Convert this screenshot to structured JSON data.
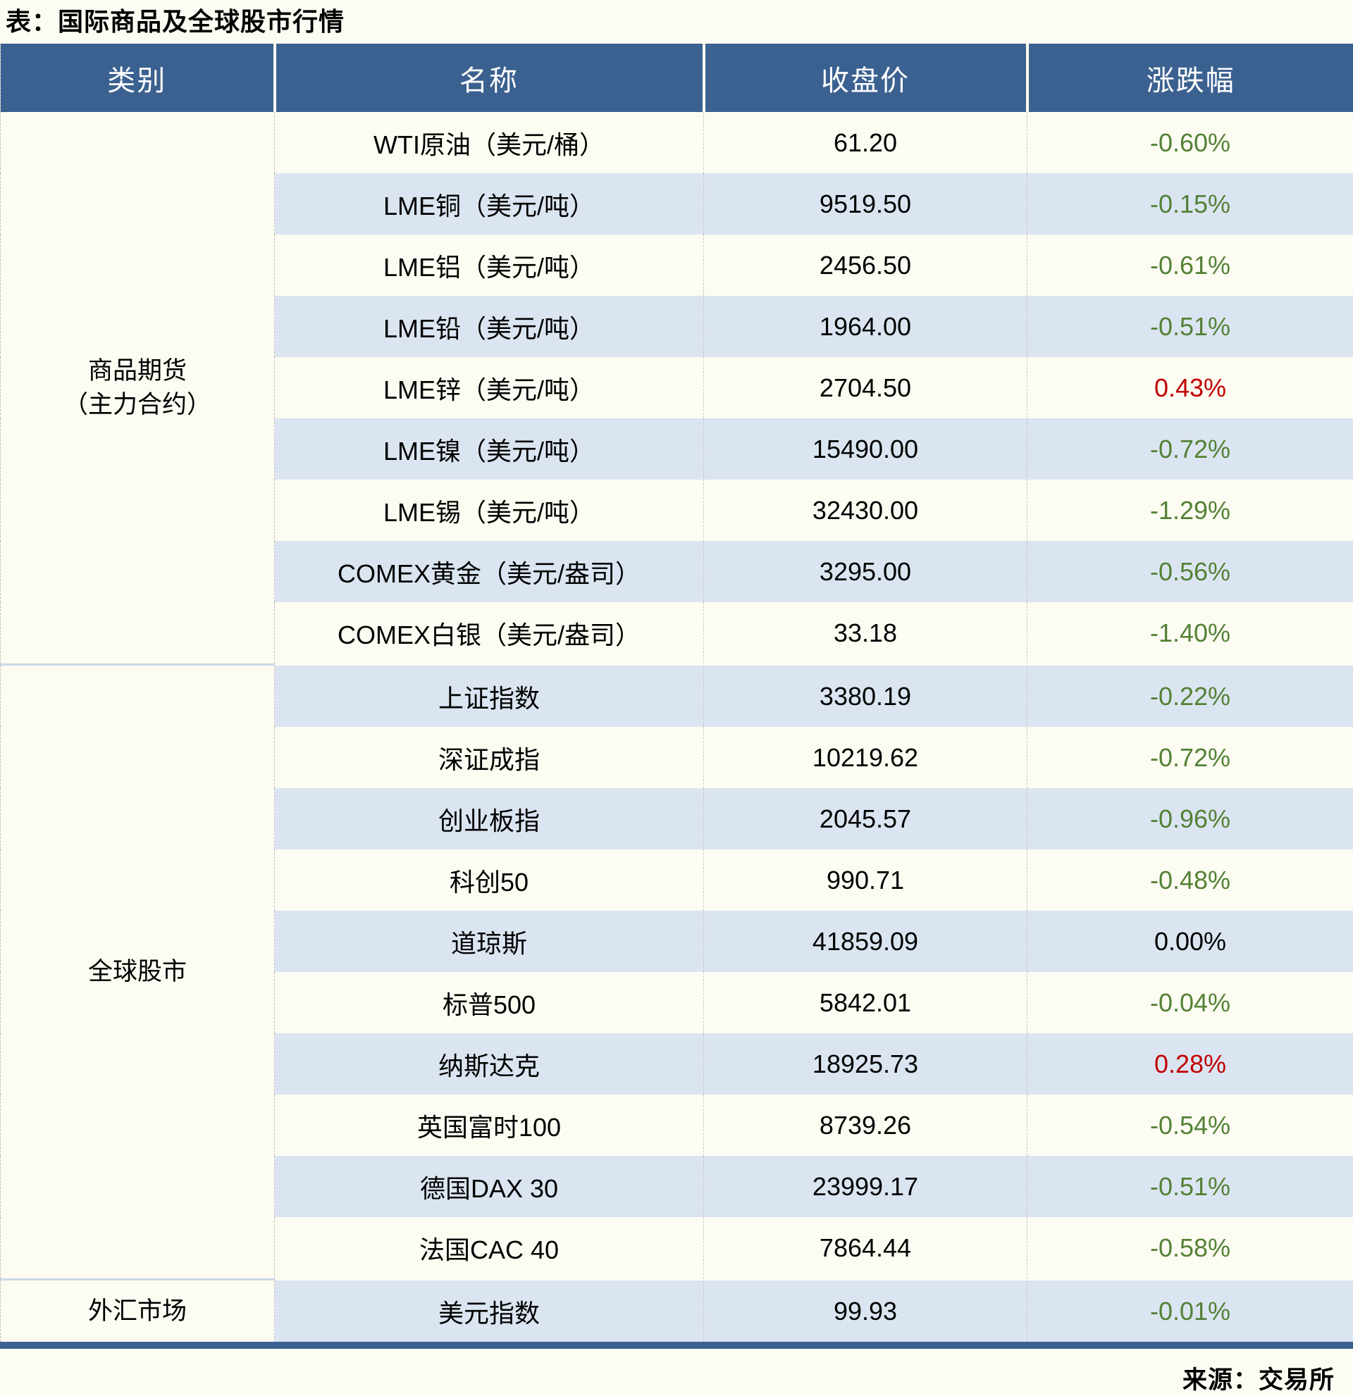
{
  "title": "表：国际商品及全球股市行情",
  "source": "来源：交易所",
  "colors": {
    "header_bg": "#3b6190",
    "stripe_bg": "#dbe5f1",
    "gain_red": "#c00000",
    "decline_green": "#538135",
    "flat_black": "#000000",
    "page_bg": "#fdfcf2",
    "section_divider": "#c9d7e9"
  },
  "table": {
    "headers": [
      "类别",
      "名称",
      "收盘价",
      "涨跌幅"
    ],
    "sections": [
      {
        "category_lines": [
          "商品期货",
          "（主力合约）"
        ],
        "rows": [
          {
            "name": "WTI原油（美元/桶）",
            "close": "61.20",
            "change": "-0.60%",
            "dir": "down"
          },
          {
            "name": "LME铜（美元/吨）",
            "close": "9519.50",
            "change": "-0.15%",
            "dir": "down"
          },
          {
            "name": "LME铝（美元/吨）",
            "close": "2456.50",
            "change": "-0.61%",
            "dir": "down"
          },
          {
            "name": "LME铅（美元/吨）",
            "close": "1964.00",
            "change": "-0.51%",
            "dir": "down"
          },
          {
            "name": "LME锌（美元/吨）",
            "close": "2704.50",
            "change": "0.43%",
            "dir": "up"
          },
          {
            "name": "LME镍（美元/吨）",
            "close": "15490.00",
            "change": "-0.72%",
            "dir": "down"
          },
          {
            "name": "LME锡（美元/吨）",
            "close": "32430.00",
            "change": "-1.29%",
            "dir": "down"
          },
          {
            "name": "COMEX黄金（美元/盎司）",
            "close": "3295.00",
            "change": "-0.56%",
            "dir": "down"
          },
          {
            "name": "COMEX白银（美元/盎司）",
            "close": "33.18",
            "change": "-1.40%",
            "dir": "down"
          }
        ]
      },
      {
        "category_lines": [
          "全球股市"
        ],
        "rows": [
          {
            "name": "上证指数",
            "close": "3380.19",
            "change": "-0.22%",
            "dir": "down"
          },
          {
            "name": "深证成指",
            "close": "10219.62",
            "change": "-0.72%",
            "dir": "down"
          },
          {
            "name": "创业板指",
            "close": "2045.57",
            "change": "-0.96%",
            "dir": "down"
          },
          {
            "name": "科创50",
            "close": "990.71",
            "change": "-0.48%",
            "dir": "down"
          },
          {
            "name": "道琼斯",
            "close": "41859.09",
            "change": "0.00%",
            "dir": "flat"
          },
          {
            "name": "标普500",
            "close": "5842.01",
            "change": "-0.04%",
            "dir": "down"
          },
          {
            "name": "纳斯达克",
            "close": "18925.73",
            "change": "0.28%",
            "dir": "up"
          },
          {
            "name": "英国富时100",
            "close": "8739.26",
            "change": "-0.54%",
            "dir": "down"
          },
          {
            "name": "德国DAX 30",
            "close": "23999.17",
            "change": "-0.51%",
            "dir": "down"
          },
          {
            "name": "法国CAC 40",
            "close": "7864.44",
            "change": "-0.58%",
            "dir": "down"
          }
        ]
      },
      {
        "category_lines": [
          "外汇市场"
        ],
        "rows": [
          {
            "name": "美元指数",
            "close": "99.93",
            "change": "-0.01%",
            "dir": "down"
          }
        ]
      }
    ]
  },
  "chart_data": {
    "type": "table",
    "title": "表：国际商品及全球股市行情",
    "columns": [
      "类别",
      "名称",
      "收盘价",
      "涨跌幅"
    ],
    "rows": [
      [
        "商品期货（主力合约）",
        "WTI原油（美元/桶）",
        61.2,
        "-0.60%"
      ],
      [
        "商品期货（主力合约）",
        "LME铜（美元/吨）",
        9519.5,
        "-0.15%"
      ],
      [
        "商品期货（主力合约）",
        "LME铝（美元/吨）",
        2456.5,
        "-0.61%"
      ],
      [
        "商品期货（主力合约）",
        "LME铅（美元/吨）",
        1964.0,
        "-0.51%"
      ],
      [
        "商品期货（主力合约）",
        "LME锌（美元/吨）",
        2704.5,
        "0.43%"
      ],
      [
        "商品期货（主力合约）",
        "LME镍（美元/吨）",
        15490.0,
        "-0.72%"
      ],
      [
        "商品期货（主力合约）",
        "LME锡（美元/吨）",
        32430.0,
        "-1.29%"
      ],
      [
        "商品期货（主力合约）",
        "COMEX黄金（美元/盎司）",
        3295.0,
        "-0.56%"
      ],
      [
        "商品期货（主力合约）",
        "COMEX白银（美元/盎司）",
        33.18,
        "-1.40%"
      ],
      [
        "全球股市",
        "上证指数",
        3380.19,
        "-0.22%"
      ],
      [
        "全球股市",
        "深证成指",
        10219.62,
        "-0.72%"
      ],
      [
        "全球股市",
        "创业板指",
        2045.57,
        "-0.96%"
      ],
      [
        "全球股市",
        "科创50",
        990.71,
        "-0.48%"
      ],
      [
        "全球股市",
        "道琼斯",
        41859.09,
        "0.00%"
      ],
      [
        "全球股市",
        "标普500",
        5842.01,
        "-0.04%"
      ],
      [
        "全球股市",
        "纳斯达克",
        18925.73,
        "0.28%"
      ],
      [
        "全球股市",
        "英国富时100",
        8739.26,
        "-0.54%"
      ],
      [
        "全球股市",
        "德国DAX 30",
        23999.17,
        "-0.51%"
      ],
      [
        "全球股市",
        "法国CAC 40",
        7864.44,
        "-0.58%"
      ],
      [
        "外汇市场",
        "美元指数",
        99.93,
        "-0.01%"
      ]
    ],
    "notes": "涨跌幅颜色：负值为绿色(#538135)，正值为红色(#c00000)，0.00%为黑色；来源：交易所"
  }
}
